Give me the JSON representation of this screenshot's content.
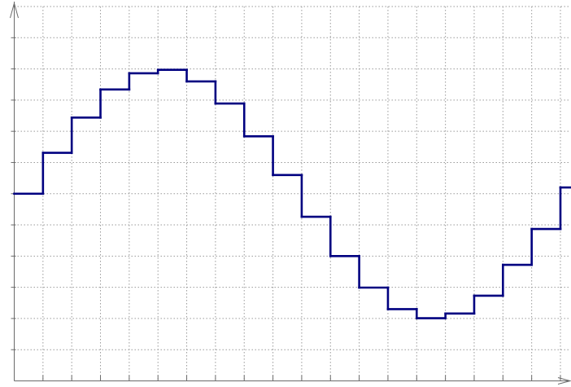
{
  "chart_data": {
    "type": "line",
    "step": "post",
    "title": "",
    "xlabel": "",
    "ylabel": "",
    "grid": true,
    "xlim": [
      0,
      19
    ],
    "ylim": [
      -6,
      6
    ],
    "x": [
      0,
      1,
      2,
      3,
      4,
      5,
      6,
      7,
      8,
      9,
      10,
      11,
      12,
      13,
      14,
      15,
      16,
      17,
      18,
      19
    ],
    "series": [
      {
        "values": [
          0.0,
          1.31,
          2.44,
          3.34,
          3.86,
          3.97,
          3.6,
          2.89,
          1.84,
          0.6,
          -0.74,
          -2.0,
          -3.01,
          -3.7,
          -3.99,
          -3.84,
          -3.27,
          -2.28,
          -1.13,
          0.2
        ]
      }
    ],
    "colors": {
      "line": "#000080",
      "grid": "#9a9a9a",
      "axis": "#6a6a6a"
    }
  }
}
